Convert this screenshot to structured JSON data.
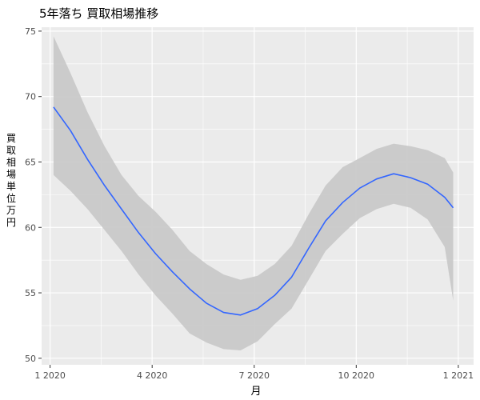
{
  "chart_data": {
    "type": "line",
    "title": "5年落ち 買取相場推移",
    "xlabel": "月",
    "ylabel": "買取相場 単位 万円",
    "x_ticks": [
      {
        "value": 0,
        "label": "1 2020"
      },
      {
        "value": 3,
        "label": "4 2020"
      },
      {
        "value": 6,
        "label": "7 2020"
      },
      {
        "value": 9,
        "label": "10 2020"
      },
      {
        "value": 12,
        "label": "1 2021"
      }
    ],
    "y_ticks": [
      50,
      55,
      60,
      65,
      70,
      75
    ],
    "xlim": [
      -0.25,
      12.45
    ],
    "ylim": [
      49.5,
      75.3
    ],
    "grid": true,
    "colors": {
      "line": "#3366FF",
      "ribbon": "#C9C9C9",
      "panel": "#EBEBEB",
      "grid": "#FFFFFF"
    },
    "series": [
      {
        "x": [
          0.1,
          0.6,
          1.1,
          1.6,
          2.1,
          2.6,
          3.1,
          3.6,
          4.1,
          4.6,
          5.1,
          5.6,
          6.1,
          6.6,
          7.1,
          7.6,
          8.1,
          8.6,
          9.1,
          9.6,
          10.1,
          10.6,
          11.1,
          11.6,
          11.85
        ],
        "y": [
          69.2,
          67.4,
          65.2,
          63.2,
          61.4,
          59.6,
          58.0,
          56.6,
          55.3,
          54.2,
          53.5,
          53.3,
          53.8,
          54.8,
          56.2,
          58.4,
          60.5,
          61.9,
          63.0,
          63.7,
          64.1,
          63.8,
          63.3,
          62.3,
          61.5
        ],
        "lower": [
          64.0,
          62.8,
          61.4,
          59.8,
          58.2,
          56.4,
          54.8,
          53.4,
          51.9,
          51.2,
          50.7,
          50.6,
          51.3,
          52.6,
          53.8,
          56.0,
          58.2,
          59.5,
          60.7,
          61.4,
          61.8,
          61.5,
          60.6,
          58.5,
          54.4
        ],
        "upper": [
          74.6,
          71.8,
          68.8,
          66.2,
          64.0,
          62.4,
          61.2,
          59.8,
          58.2,
          57.2,
          56.4,
          56.0,
          56.3,
          57.2,
          58.6,
          61.0,
          63.2,
          64.6,
          65.3,
          66.0,
          66.4,
          66.2,
          65.9,
          65.3,
          64.2
        ]
      }
    ]
  }
}
